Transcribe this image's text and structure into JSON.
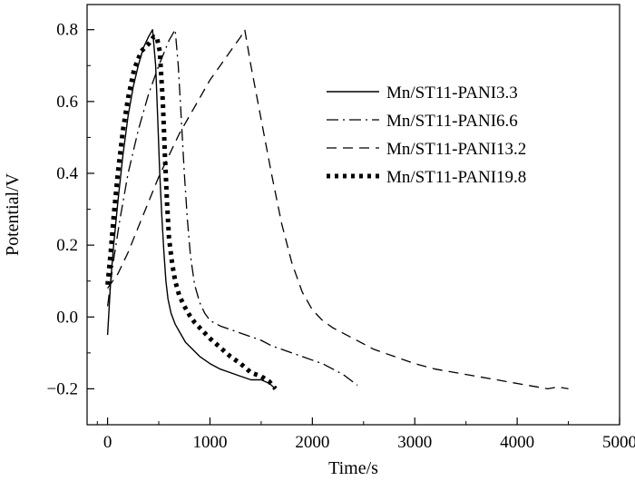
{
  "chart_data": {
    "type": "line",
    "xlabel": "Time/s",
    "ylabel": "Potential/V",
    "xlim": [
      -200,
      5000
    ],
    "ylim": [
      -0.3,
      0.87
    ],
    "x_ticks": [
      0,
      1000,
      2000,
      3000,
      4000,
      5000
    ],
    "x_tick_labels": [
      "0",
      "1000",
      "2000",
      "3000",
      "4000",
      "5000"
    ],
    "y_ticks": [
      -0.2,
      0.0,
      0.2,
      0.4,
      0.6,
      0.8
    ],
    "y_tick_labels": [
      "−0.2",
      "0.0",
      "0.2",
      "0.4",
      "0.6",
      "0.8"
    ],
    "grid": false,
    "legend_position": "right",
    "series": [
      {
        "name": "Mn/ST11-PANI3.3",
        "line_style": "solid",
        "x": [
          0,
          30,
          60,
          100,
          150,
          200,
          250,
          300,
          350,
          400,
          440,
          470,
          490,
          510,
          530,
          550,
          570,
          590,
          620,
          660,
          700,
          760,
          830,
          900,
          1000,
          1100,
          1200,
          1300,
          1400,
          1500,
          1580,
          1640
        ],
        "y": [
          -0.05,
          0.1,
          0.2,
          0.32,
          0.45,
          0.56,
          0.64,
          0.7,
          0.75,
          0.78,
          0.8,
          0.7,
          0.55,
          0.4,
          0.28,
          0.18,
          0.1,
          0.05,
          0.01,
          -0.02,
          -0.04,
          -0.07,
          -0.09,
          -0.11,
          -0.13,
          -0.145,
          -0.155,
          -0.165,
          -0.175,
          -0.175,
          -0.185,
          -0.2
        ]
      },
      {
        "name": "Mn/ST11-PANI6.6",
        "line_style": "dashdot",
        "x": [
          0,
          60,
          120,
          200,
          300,
          400,
          500,
          600,
          660,
          690,
          720,
          750,
          780,
          810,
          850,
          900,
          950,
          1000,
          1100,
          1200,
          1300,
          1400,
          1500,
          1600,
          1700,
          1800,
          1900,
          2000,
          2100,
          2200,
          2300,
          2440
        ],
        "y": [
          0.03,
          0.16,
          0.27,
          0.4,
          0.52,
          0.62,
          0.7,
          0.77,
          0.8,
          0.7,
          0.55,
          0.4,
          0.27,
          0.17,
          0.09,
          0.04,
          0.01,
          -0.01,
          -0.025,
          -0.035,
          -0.045,
          -0.055,
          -0.065,
          -0.08,
          -0.09,
          -0.1,
          -0.11,
          -0.12,
          -0.13,
          -0.145,
          -0.16,
          -0.19
        ]
      },
      {
        "name": "Mn/ST11-PANI13.2",
        "line_style": "dashed",
        "x": [
          0,
          100,
          200,
          300,
          400,
          500,
          600,
          700,
          800,
          900,
          1000,
          1100,
          1200,
          1300,
          1340,
          1400,
          1500,
          1600,
          1700,
          1800,
          1900,
          2000,
          2100,
          2200,
          2400,
          2600,
          2800,
          3000,
          3200,
          3500,
          3800,
          4100,
          4300,
          4400,
          4500
        ],
        "y": [
          0.08,
          0.12,
          0.18,
          0.25,
          0.32,
          0.39,
          0.45,
          0.51,
          0.56,
          0.61,
          0.66,
          0.7,
          0.74,
          0.78,
          0.8,
          0.7,
          0.55,
          0.4,
          0.26,
          0.15,
          0.07,
          0.02,
          -0.01,
          -0.03,
          -0.06,
          -0.09,
          -0.11,
          -0.13,
          -0.145,
          -0.16,
          -0.175,
          -0.19,
          -0.2,
          -0.195,
          -0.2
        ]
      },
      {
        "name": "Mn/ST11-PANI19.8",
        "line_style": "dotted",
        "x": [
          0,
          30,
          60,
          100,
          150,
          200,
          260,
          330,
          400,
          450,
          480,
          510,
          540,
          560,
          580,
          600,
          630,
          660,
          700,
          750,
          800,
          850,
          900,
          1000,
          1100,
          1200,
          1300,
          1400,
          1500,
          1580,
          1640
        ],
        "y": [
          0.09,
          0.18,
          0.28,
          0.4,
          0.52,
          0.61,
          0.69,
          0.74,
          0.76,
          0.78,
          0.78,
          0.74,
          0.6,
          0.45,
          0.32,
          0.22,
          0.15,
          0.1,
          0.06,
          0.03,
          0.005,
          -0.015,
          -0.03,
          -0.06,
          -0.085,
          -0.11,
          -0.13,
          -0.155,
          -0.165,
          -0.18,
          -0.2
        ]
      }
    ]
  }
}
